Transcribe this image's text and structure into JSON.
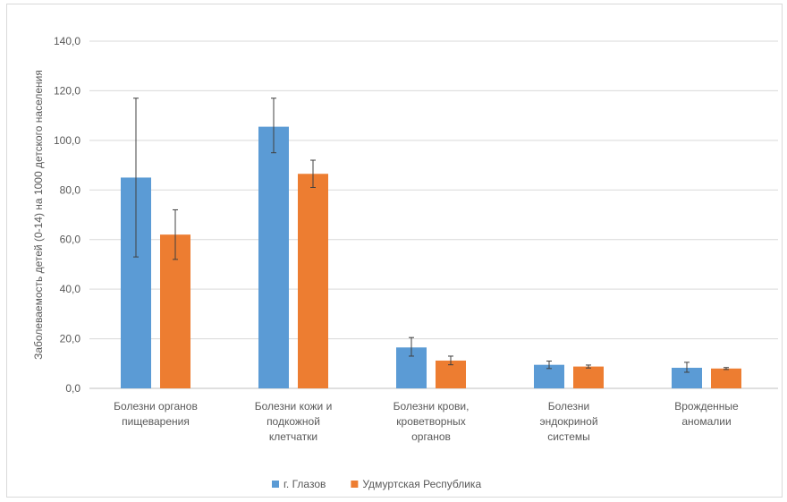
{
  "chart_data": {
    "type": "bar",
    "ylabel": "Заболеваемость детей (0-14) на 1000 детского населения",
    "ylim": [
      0,
      140
    ],
    "y_ticks": [
      "0,0",
      "20,0",
      "40,0",
      "60,0",
      "80,0",
      "100,0",
      "120,0",
      "140,0"
    ],
    "grid": true,
    "legend_position": "bottom",
    "categories": [
      [
        "Болезни органов",
        "пищеварения"
      ],
      [
        "Болезни кожи и",
        "подкожной",
        "клетчатки"
      ],
      [
        "Болезни крови,",
        "кроветворных",
        "органов"
      ],
      [
        "Болезни",
        "эндокриной",
        "системы"
      ],
      [
        "Врожденные",
        "аномалии"
      ]
    ],
    "series": [
      {
        "name": "г. Глазов",
        "color": "#5b9bd5",
        "values": [
          85,
          105.5,
          16.5,
          9.5,
          8.3
        ],
        "error_low": [
          53,
          95,
          13,
          8,
          6.5
        ],
        "error_high": [
          117,
          117,
          20.5,
          11,
          10.5
        ]
      },
      {
        "name": "Удмуртская Республика",
        "color": "#ed7d31",
        "values": [
          62,
          86.5,
          11.2,
          8.8,
          8.0
        ],
        "error_low": [
          52,
          81,
          9.5,
          8.2,
          7.6
        ],
        "error_high": [
          72,
          92,
          13,
          9.4,
          8.4
        ]
      }
    ]
  }
}
